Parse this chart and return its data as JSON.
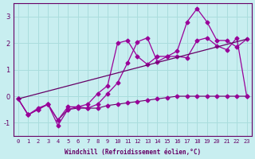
{
  "x": [
    0,
    1,
    2,
    3,
    4,
    5,
    6,
    7,
    8,
    9,
    10,
    11,
    12,
    13,
    14,
    15,
    16,
    17,
    18,
    19,
    20,
    21,
    22,
    23
  ],
  "line1": [
    -0.1,
    -0.7,
    -0.5,
    -0.3,
    -0.9,
    -0.5,
    -0.45,
    -0.45,
    -0.45,
    -0.35,
    -0.3,
    -0.25,
    -0.2,
    -0.15,
    -0.1,
    -0.05,
    0.0,
    0.0,
    0.0,
    0.0,
    0.0,
    0.0,
    0.0,
    0.0
  ],
  "line2": [
    -0.1,
    -0.7,
    -0.5,
    -0.3,
    -1.1,
    -0.5,
    -0.4,
    -0.45,
    -0.3,
    0.1,
    0.5,
    1.25,
    2.05,
    2.2,
    1.3,
    1.5,
    1.5,
    1.45,
    2.1,
    2.2,
    1.9,
    1.75,
    2.2,
    0.0
  ],
  "line3": [
    -0.1,
    null,
    null,
    null,
    null,
    null,
    null,
    null,
    null,
    null,
    null,
    null,
    null,
    null,
    null,
    null,
    null,
    null,
    null,
    null,
    null,
    null,
    null,
    null
  ],
  "line4": [
    -0.1,
    -0.7,
    -0.45,
    -0.3,
    -0.9,
    -0.4,
    -0.4,
    -0.3,
    0.1,
    0.4,
    2.0,
    2.1,
    1.5,
    1.2,
    1.5,
    1.5,
    1.7,
    2.8,
    3.3,
    2.8,
    2.1,
    2.1,
    1.85,
    2.15
  ],
  "line5_x": [
    0,
    23
  ],
  "line5_y": [
    -0.1,
    2.15
  ],
  "bg_color": "#c8eef0",
  "grid_color": "#aadddd",
  "line_color": "#990099",
  "line_color2": "#660066",
  "xlabel": "Windchill (Refroidissement éolien,°C)",
  "ylim": [
    -1.5,
    3.5
  ],
  "xlim": [
    -0.5,
    23.5
  ],
  "yticks": [
    -1,
    0,
    1,
    2,
    3
  ],
  "xticks": [
    0,
    1,
    2,
    3,
    4,
    5,
    6,
    7,
    8,
    9,
    10,
    11,
    12,
    13,
    14,
    15,
    16,
    17,
    18,
    19,
    20,
    21,
    22,
    23
  ]
}
